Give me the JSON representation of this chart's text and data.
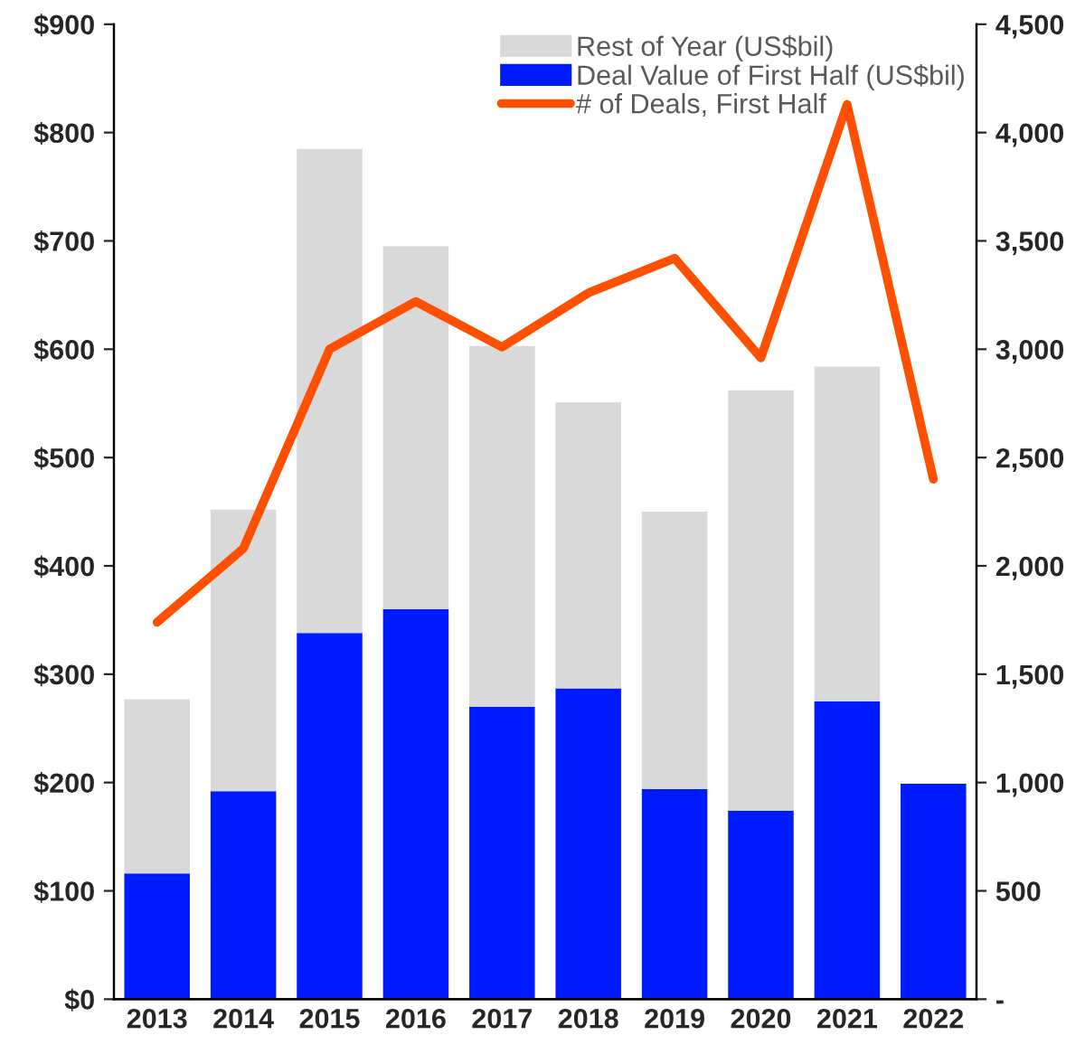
{
  "chart_data": {
    "type": "bar",
    "stacked": true,
    "legend": "top right",
    "grid": false,
    "categories": [
      "2013",
      "2014",
      "2015",
      "2016",
      "2017",
      "2018",
      "2019",
      "2020",
      "2021",
      "2022"
    ],
    "series": [
      {
        "name": "Deal Value of First Half (US$bil)",
        "color": "#001aff",
        "values": [
          116,
          192,
          338,
          360,
          270,
          287,
          194,
          174,
          275,
          199
        ]
      },
      {
        "name": "Rest of Year (US$bil)",
        "color": "#d9d9d9",
        "values": [
          161,
          260,
          447,
          335,
          333,
          264,
          256,
          388,
          309,
          null
        ]
      },
      {
        "name": "# of Deals, First Half",
        "type": "line",
        "axis": "y2",
        "color": "#ff5000",
        "marker": "none",
        "line_style": "solid",
        "values": [
          1740,
          2080,
          3000,
          3220,
          3010,
          3260,
          3420,
          2960,
          4130,
          2400
        ]
      }
    ],
    "ylim": [
      0,
      900
    ],
    "yticks": [
      {
        "value": 0,
        "label": "$0"
      },
      {
        "value": 100,
        "label": "$100"
      },
      {
        "value": 200,
        "label": "$200"
      },
      {
        "value": 300,
        "label": "$300"
      },
      {
        "value": 400,
        "label": "$400"
      },
      {
        "value": 500,
        "label": "$500"
      },
      {
        "value": 600,
        "label": "$600"
      },
      {
        "value": 700,
        "label": "$700"
      },
      {
        "value": 800,
        "label": "$800"
      },
      {
        "value": 900,
        "label": "$900"
      }
    ],
    "y2lim": [
      0,
      4500
    ],
    "y2ticks": [
      {
        "value": 0,
        "label": "-"
      },
      500,
      {
        "value": 1000,
        "label": "1,000"
      },
      {
        "value": 1500,
        "label": "1,500"
      },
      {
        "value": 2000,
        "label": "2,000"
      },
      {
        "value": 2500,
        "label": "2,500"
      },
      {
        "value": 3000,
        "label": "3,000"
      },
      {
        "value": 3500,
        "label": "3,500"
      },
      {
        "value": 4000,
        "label": "4,000"
      },
      {
        "value": 4500,
        "label": "4,500"
      }
    ]
  }
}
